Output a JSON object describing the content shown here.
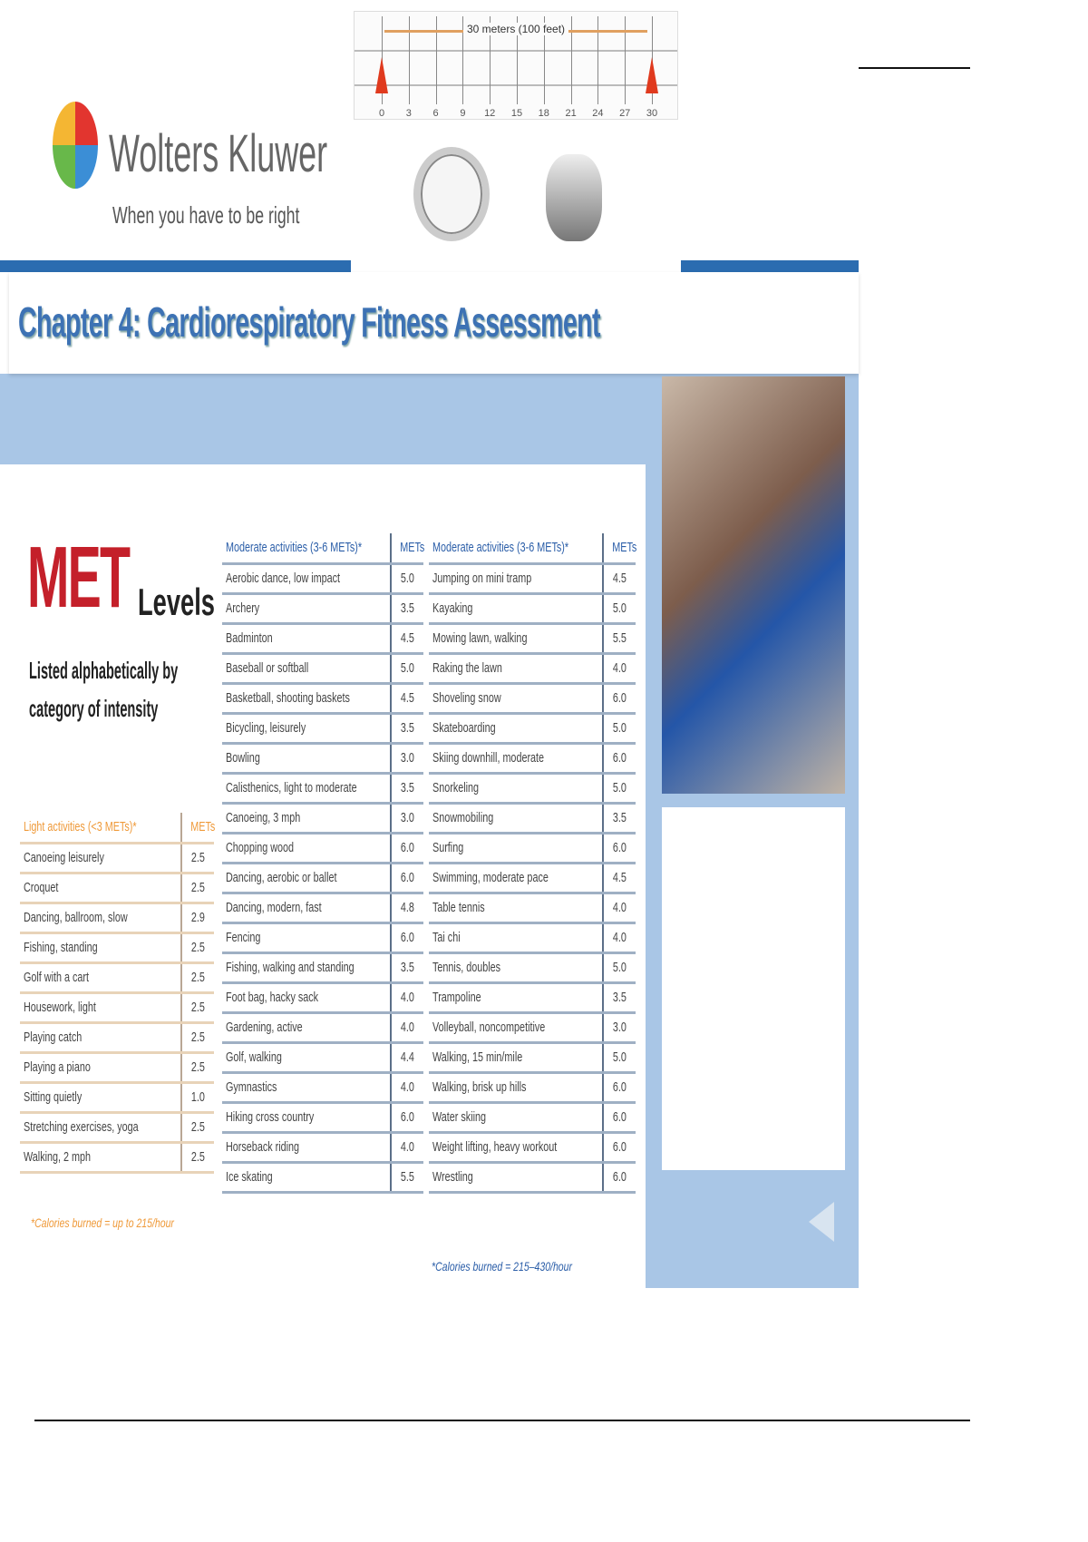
{
  "ruler": {
    "label": "30 meters (100 feet)",
    "ticks": [
      "0",
      "3",
      "6",
      "9",
      "12",
      "15",
      "18",
      "21",
      "24",
      "27",
      "30"
    ]
  },
  "logo": {
    "name": "Wolters Kluwer",
    "tagline": "When you have to be right"
  },
  "title": "Chapter 4: Cardiorespiratory Fitness Assessment",
  "met": {
    "title_big": "MET",
    "title_small": "Levels",
    "subtitle": "Listed alphabetically by category of intensity"
  },
  "light": {
    "header": "Light activities (<3 METs)*",
    "mets_header": "METs",
    "footnote": "*Calories burned = up to 215/hour",
    "rows": [
      [
        "Canoeing leisurely",
        "2.5"
      ],
      [
        "Croquet",
        "2.5"
      ],
      [
        "Dancing, ballroom, slow",
        "2.9"
      ],
      [
        "Fishing, standing",
        "2.5"
      ],
      [
        "Golf with a cart",
        "2.5"
      ],
      [
        "Housework, light",
        "2.5"
      ],
      [
        "Playing catch",
        "2.5"
      ],
      [
        "Playing a piano",
        "2.5"
      ],
      [
        "Sitting quietly",
        "1.0"
      ],
      [
        "Stretching exercises, yoga",
        "2.5"
      ],
      [
        "Walking, 2 mph",
        "2.5"
      ]
    ]
  },
  "moderate1": {
    "header": "Moderate activities (3-6 METs)*",
    "mets_header": "METs",
    "rows": [
      [
        "Aerobic dance, low impact",
        "5.0"
      ],
      [
        "Archery",
        "3.5"
      ],
      [
        "Badminton",
        "4.5"
      ],
      [
        "Baseball or softball",
        "5.0"
      ],
      [
        "Basketball, shooting baskets",
        "4.5"
      ],
      [
        "Bicycling, leisurely",
        "3.5"
      ],
      [
        "Bowling",
        "3.0"
      ],
      [
        "Calisthenics, light to moderate",
        "3.5"
      ],
      [
        "Canoeing, 3 mph",
        "3.0"
      ],
      [
        "Chopping wood",
        "6.0"
      ],
      [
        "Dancing, aerobic or ballet",
        "6.0"
      ],
      [
        "Dancing, modern, fast",
        "4.8"
      ],
      [
        "Fencing",
        "6.0"
      ],
      [
        "Fishing, walking and standing",
        "3.5"
      ],
      [
        "Foot bag, hacky sack",
        "4.0"
      ],
      [
        "Gardening, active",
        "4.0"
      ],
      [
        "Golf, walking",
        "4.4"
      ],
      [
        "Gymnastics",
        "4.0"
      ],
      [
        "Hiking cross country",
        "6.0"
      ],
      [
        "Horseback riding",
        "4.0"
      ],
      [
        "Ice skating",
        "5.5"
      ]
    ]
  },
  "moderate2": {
    "header": "Moderate activities (3-6 METs)*",
    "mets_header": "METs",
    "footnote": "*Calories burned = 215–430/hour",
    "rows": [
      [
        "Jumping on mini tramp",
        "4.5"
      ],
      [
        "Kayaking",
        "5.0"
      ],
      [
        "Mowing lawn, walking",
        "5.5"
      ],
      [
        "Raking the lawn",
        "4.0"
      ],
      [
        "Shoveling snow",
        "6.0"
      ],
      [
        "Skateboarding",
        "5.0"
      ],
      [
        "Skiing downhill, moderate",
        "6.0"
      ],
      [
        "Snorkeling",
        "5.0"
      ],
      [
        "Snowmobiling",
        "3.5"
      ],
      [
        "Surfing",
        "6.0"
      ],
      [
        "Swimming, moderate pace",
        "4.5"
      ],
      [
        "Table tennis",
        "4.0"
      ],
      [
        "Tai chi",
        "4.0"
      ],
      [
        "Tennis, doubles",
        "5.0"
      ],
      [
        "Trampoline",
        "3.5"
      ],
      [
        "Volleyball, noncompetitive",
        "3.0"
      ],
      [
        "Walking, 15 min/mile",
        "5.0"
      ],
      [
        "Walking, brisk up hills",
        "6.0"
      ],
      [
        "Water skiing",
        "6.0"
      ],
      [
        "Weight lifting, heavy workout",
        "6.0"
      ],
      [
        "Wrestling",
        "6.0"
      ]
    ]
  },
  "colors": {
    "brand_blue": "#2b6cb0",
    "title_blue": "#3d72b4",
    "light_orange": "#ef9a3a",
    "background_blue": "#a9c6e6"
  },
  "icons": [
    "speaker-icon",
    "stopwatch-icon",
    "tally-counter-icon",
    "traffic-cone-icon"
  ]
}
